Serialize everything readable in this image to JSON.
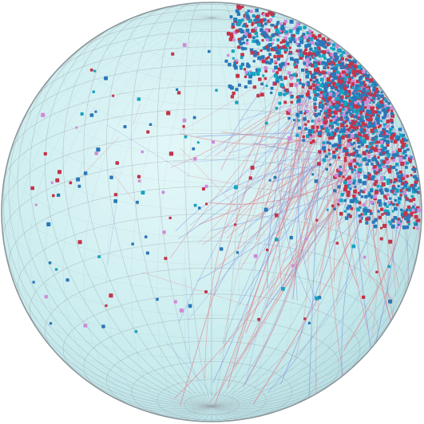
{
  "globe": {
    "fill_color": "#c7ecee",
    "grid_color": "#9aa3a8",
    "outline_color": "#8a9499",
    "latitude_step_deg": 7.5,
    "longitude_step_deg": 7.5,
    "view_tilt_deg": 22
  },
  "palette": {
    "red": "#c4344a",
    "blue": "#2a78b8",
    "teal": "#17a3c2",
    "pink": "#d08ad8",
    "trail_red": "#e07a86",
    "trail_blue": "#7d93e0"
  },
  "distribution": {
    "cluster_region": "upper-right",
    "point_count": 1400,
    "trail_count": 140,
    "scattered_point_count": 150
  }
}
